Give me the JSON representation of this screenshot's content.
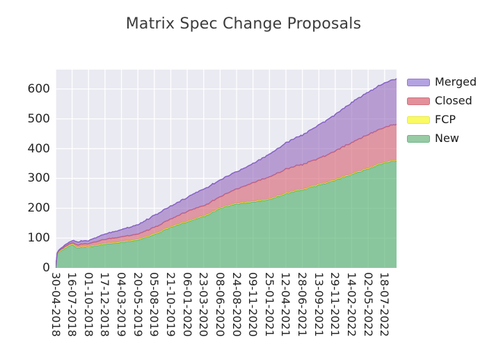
{
  "title": "Matrix Spec Change Proposals",
  "legend": {
    "items": [
      {
        "label": "Merged",
        "key": "Merged"
      },
      {
        "label": "Closed",
        "key": "Closed"
      },
      {
        "label": "FCP",
        "key": "FCP"
      },
      {
        "label": "New",
        "key": "New"
      }
    ]
  },
  "chart_data": {
    "type": "area",
    "stacked": true,
    "title": "Matrix Spec Change Proposals",
    "xlabel": "",
    "ylabel": "",
    "grid": true,
    "legend_position": "outside-upper-right",
    "plot_background": "#eaeaf2",
    "gridline_color": "#ffffff",
    "ylim": [
      0,
      665
    ],
    "y_ticks": [
      0,
      100,
      200,
      300,
      400,
      500,
      600
    ],
    "x_tick_interval_days": 77,
    "xlim_days": [
      0,
      1596
    ],
    "x_tick_labels": [
      "30-04-2018",
      "16-07-2018",
      "01-10-2018",
      "17-12-2018",
      "04-03-2019",
      "20-05-2019",
      "05-08-2019",
      "21-10-2019",
      "06-01-2020",
      "23-03-2020",
      "08-06-2020",
      "24-08-2020",
      "09-11-2020",
      "25-01-2021",
      "12-04-2021",
      "28-06-2021",
      "13-09-2021",
      "29-11-2021",
      "14-02-2022",
      "02-05-2022",
      "18-07-2022"
    ],
    "series_order_bottom_to_top": [
      "New",
      "FCP",
      "Closed",
      "Merged"
    ],
    "series": [
      {
        "name": "New",
        "line_color": "#4faf6b",
        "fill_color": "rgba(77,175,105,0.62)",
        "swatch_fill": "#96cba4",
        "swatch_line": "#6db585"
      },
      {
        "name": "FCP",
        "line_color": "#e3e33c",
        "fill_color": "rgba(255,255,84,0.88)",
        "swatch_fill": "#fafa64",
        "swatch_line": "#e8e84a"
      },
      {
        "name": "Closed",
        "line_color": "#cf6070",
        "fill_color": "rgba(214,95,110,0.60)",
        "swatch_fill": "#e2909a",
        "swatch_line": "#d4707c"
      },
      {
        "name": "Merged",
        "line_color": "#8560c4",
        "fill_color": "rgba(148,103,189,0.60)",
        "swatch_fill": "#b4a2e2",
        "swatch_line": "#9678c8"
      }
    ],
    "samples": [
      {
        "d": 0,
        "New": 0,
        "FCP": 0,
        "Closed": 0,
        "Merged": 0
      },
      {
        "d": 4,
        "New": 40,
        "FCP": 1,
        "Closed": 1,
        "Merged": 1
      },
      {
        "d": 10,
        "New": 52,
        "FCP": 1,
        "Closed": 2,
        "Merged": 3
      },
      {
        "d": 35,
        "New": 62,
        "FCP": 2,
        "Closed": 3,
        "Merged": 5
      },
      {
        "d": 63,
        "New": 75,
        "FCP": 2,
        "Closed": 4,
        "Merged": 6
      },
      {
        "d": 77,
        "New": 78,
        "FCP": 2,
        "Closed": 4,
        "Merged": 7
      },
      {
        "d": 100,
        "New": 68,
        "FCP": 2,
        "Closed": 8,
        "Merged": 10
      },
      {
        "d": 154,
        "New": 71,
        "FCP": 1,
        "Closed": 10,
        "Merged": 10
      },
      {
        "d": 192,
        "New": 75,
        "FCP": 2,
        "Closed": 12,
        "Merged": 14
      },
      {
        "d": 231,
        "New": 80,
        "FCP": 2,
        "Closed": 14,
        "Merged": 18
      },
      {
        "d": 308,
        "New": 86,
        "FCP": 2,
        "Closed": 16,
        "Merged": 24
      },
      {
        "d": 385,
        "New": 94,
        "FCP": 2,
        "Closed": 18,
        "Merged": 31
      },
      {
        "d": 462,
        "New": 112,
        "FCP": 2,
        "Closed": 22,
        "Merged": 40
      },
      {
        "d": 539,
        "New": 137,
        "FCP": 2,
        "Closed": 25,
        "Merged": 43
      },
      {
        "d": 616,
        "New": 155,
        "FCP": 2,
        "Closed": 33,
        "Merged": 47
      },
      {
        "d": 693,
        "New": 172,
        "FCP": 2,
        "Closed": 34,
        "Merged": 56
      },
      {
        "d": 770,
        "New": 200,
        "FCP": 2,
        "Closed": 37,
        "Merged": 56
      },
      {
        "d": 847,
        "New": 215,
        "FCP": 2,
        "Closed": 48,
        "Merged": 58
      },
      {
        "d": 924,
        "New": 222,
        "FCP": 2,
        "Closed": 62,
        "Merged": 64
      },
      {
        "d": 1001,
        "New": 230,
        "FCP": 2,
        "Closed": 74,
        "Merged": 76
      },
      {
        "d": 1078,
        "New": 250,
        "FCP": 2,
        "Closed": 80,
        "Merged": 88
      },
      {
        "d": 1155,
        "New": 262,
        "FCP": 2,
        "Closed": 83,
        "Merged": 99
      },
      {
        "d": 1232,
        "New": 277,
        "FCP": 2,
        "Closed": 87,
        "Merged": 112
      },
      {
        "d": 1309,
        "New": 295,
        "FCP": 2,
        "Closed": 96,
        "Merged": 122
      },
      {
        "d": 1386,
        "New": 313,
        "FCP": 2,
        "Closed": 105,
        "Merged": 134
      },
      {
        "d": 1463,
        "New": 333,
        "FCP": 2,
        "Closed": 112,
        "Merged": 143
      },
      {
        "d": 1540,
        "New": 352,
        "FCP": 2,
        "Closed": 117,
        "Merged": 149
      },
      {
        "d": 1596,
        "New": 361,
        "FCP": 2,
        "Closed": 120,
        "Merged": 152
      }
    ]
  }
}
